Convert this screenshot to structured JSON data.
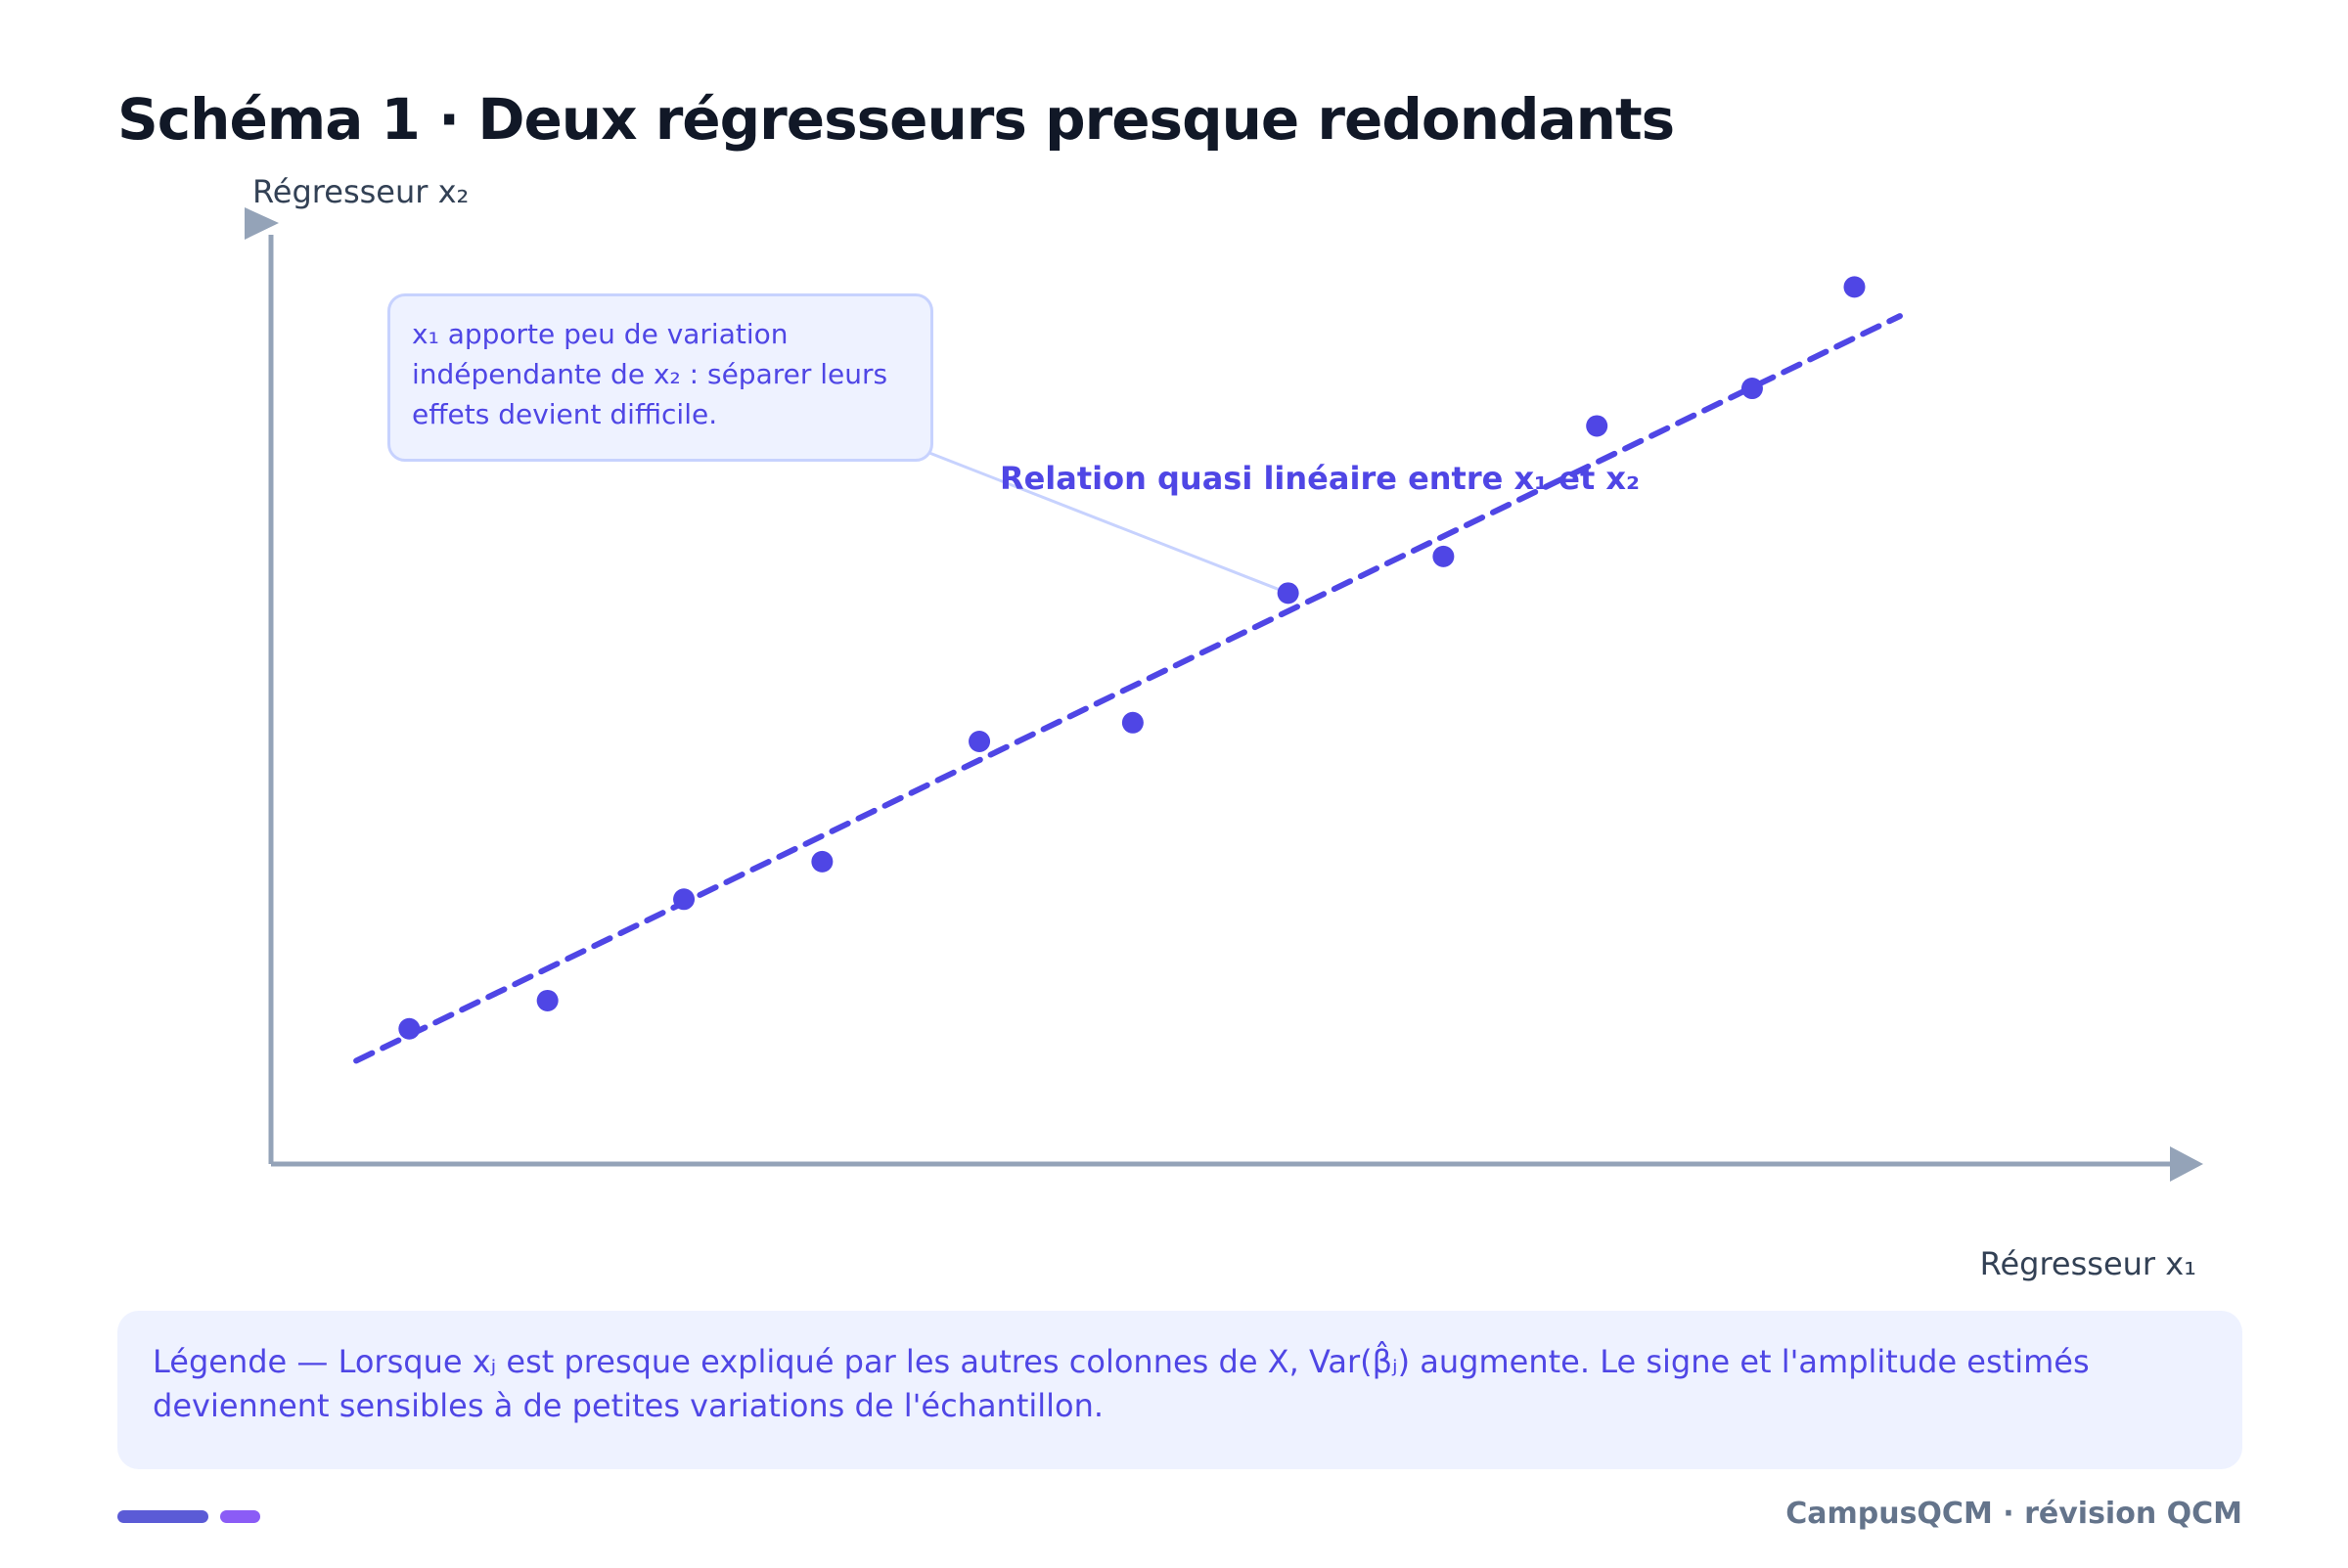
{
  "page": {
    "title": "Schéma 1 · Deux régresseurs presque redondants",
    "footer": "CampusQCM · révision QCM"
  },
  "callout": {
    "text": "x₁ apporte peu de variation indépendante de x₂ : séparer leurs effets devient difficile."
  },
  "legend": {
    "text": "Légende — Lorsque xⱼ est presque expliqué par les autres colonnes de X, Var(β̂ⱼ) augmente. Le signe et l'amplitude estimés deviennent sensibles à de petites variations de l'échantillon."
  },
  "colors": {
    "accent": "#4f46e5",
    "points": "#4f46e5",
    "axis": "#94a3b8",
    "callout_bg": "#eef2ff",
    "callout_border": "#c7d2fe"
  },
  "chart_data": {
    "type": "scatter",
    "title": "Schéma 1 · Deux régresseurs presque redondants",
    "xlabel": "Régresseur x₁",
    "ylabel": "Régresseur x₂",
    "xlim": [
      0,
      100
    ],
    "ylim": [
      0,
      100
    ],
    "ticks": false,
    "grid": false,
    "legend": "none",
    "points": [
      {
        "x": 7.3,
        "y": 14.4
      },
      {
        "x": 14.6,
        "y": 17.4
      },
      {
        "x": 21.8,
        "y": 28.2
      },
      {
        "x": 29.1,
        "y": 32.2
      },
      {
        "x": 37.4,
        "y": 45.0
      },
      {
        "x": 45.5,
        "y": 47.0
      },
      {
        "x": 53.7,
        "y": 60.8
      },
      {
        "x": 61.9,
        "y": 64.7
      },
      {
        "x": 70.0,
        "y": 78.6
      },
      {
        "x": 78.2,
        "y": 82.6
      },
      {
        "x": 83.6,
        "y": 93.4
      }
    ],
    "trend_line": {
      "x1": 4.5,
      "y1": 11.0,
      "x2": 86.0,
      "y2": 90.3,
      "style": "dashed"
    },
    "annotation": "Relation quasi linéaire entre x₁ et x₂"
  }
}
